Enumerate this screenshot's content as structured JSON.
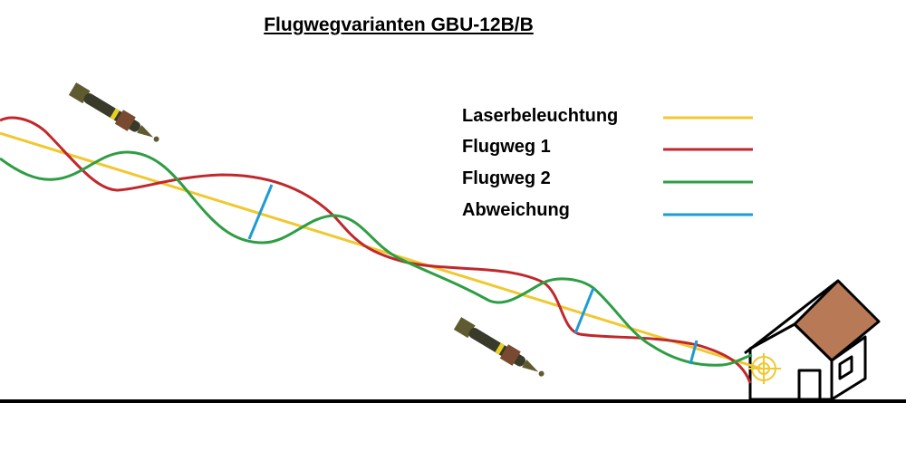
{
  "title": "Flugwegvarianten GBU-12B/B",
  "legend": [
    {
      "label": "Laserbeleuchtung",
      "color": "#f0c830"
    },
    {
      "label": "Flugweg 1",
      "color": "#c0282c"
    },
    {
      "label": "Flugweg 2",
      "color": "#2e9e44"
    },
    {
      "label": "Abweichung",
      "color": "#1e9ad6"
    }
  ],
  "colors": {
    "roof": "#b87a56",
    "ground": "#000000",
    "target": "#f0c830"
  },
  "icons": [
    "bomb-icon",
    "house-icon",
    "crosshair-icon"
  ]
}
